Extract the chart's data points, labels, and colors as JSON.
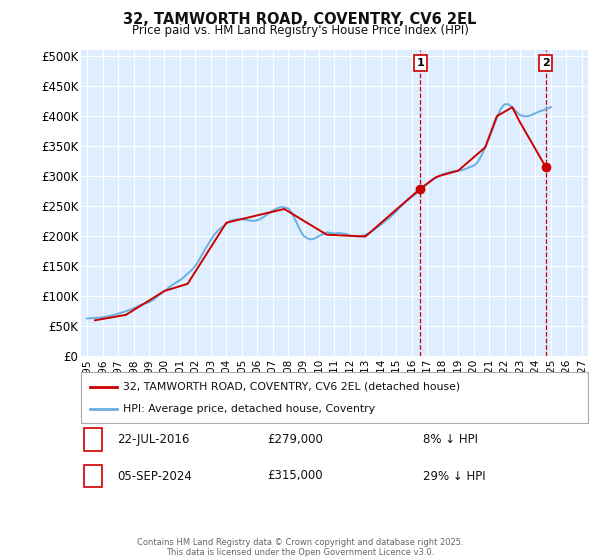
{
  "title": "32, TAMWORTH ROAD, COVENTRY, CV6 2EL",
  "subtitle": "Price paid vs. HM Land Registry's House Price Index (HPI)",
  "ylabel_ticks": [
    "£0",
    "£50K",
    "£100K",
    "£150K",
    "£200K",
    "£250K",
    "£300K",
    "£350K",
    "£400K",
    "£450K",
    "£500K"
  ],
  "ytick_values": [
    0,
    50000,
    100000,
    150000,
    200000,
    250000,
    300000,
    350000,
    400000,
    450000,
    500000
  ],
  "ylim": [
    0,
    510000
  ],
  "xlim_start": 1994.6,
  "xlim_end": 2027.4,
  "xtick_years": [
    1995,
    1996,
    1997,
    1998,
    1999,
    2000,
    2001,
    2002,
    2003,
    2004,
    2005,
    2006,
    2007,
    2008,
    2009,
    2010,
    2011,
    2012,
    2013,
    2014,
    2015,
    2016,
    2017,
    2018,
    2019,
    2020,
    2021,
    2022,
    2023,
    2024,
    2025,
    2026,
    2027
  ],
  "hpi_color": "#6ab0de",
  "price_color": "#cc0000",
  "vline_color": "#cc0000",
  "bg_color": "#deeeff",
  "grid_color": "#ffffff",
  "ann1_year": 2016.55,
  "ann1_val": 279000,
  "ann1_label": "1",
  "ann1_date": "22-JUL-2016",
  "ann1_price": "£279,000",
  "ann1_note": "8% ↓ HPI",
  "ann2_year": 2024.67,
  "ann2_val": 315000,
  "ann2_label": "2",
  "ann2_date": "05-SEP-2024",
  "ann2_price": "£315,000",
  "ann2_note": "29% ↓ HPI",
  "legend_line1": "32, TAMWORTH ROAD, COVENTRY, CV6 2EL (detached house)",
  "legend_line2": "HPI: Average price, detached house, Coventry",
  "footer": "Contains HM Land Registry data © Crown copyright and database right 2025.\nThis data is licensed under the Open Government Licence v3.0.",
  "hpi_data_years": [
    1995.0,
    1995.25,
    1995.5,
    1995.75,
    1996.0,
    1996.25,
    1996.5,
    1996.75,
    1997.0,
    1997.25,
    1997.5,
    1997.75,
    1998.0,
    1998.25,
    1998.5,
    1998.75,
    1999.0,
    1999.25,
    1999.5,
    1999.75,
    2000.0,
    2000.25,
    2000.5,
    2000.75,
    2001.0,
    2001.25,
    2001.5,
    2001.75,
    2002.0,
    2002.25,
    2002.5,
    2002.75,
    2003.0,
    2003.25,
    2003.5,
    2003.75,
    2004.0,
    2004.25,
    2004.5,
    2004.75,
    2005.0,
    2005.25,
    2005.5,
    2005.75,
    2006.0,
    2006.25,
    2006.5,
    2006.75,
    2007.0,
    2007.25,
    2007.5,
    2007.75,
    2008.0,
    2008.25,
    2008.5,
    2008.75,
    2009.0,
    2009.25,
    2009.5,
    2009.75,
    2010.0,
    2010.25,
    2010.5,
    2010.75,
    2011.0,
    2011.25,
    2011.5,
    2011.75,
    2012.0,
    2012.25,
    2012.5,
    2012.75,
    2013.0,
    2013.25,
    2013.5,
    2013.75,
    2014.0,
    2014.25,
    2014.5,
    2014.75,
    2015.0,
    2015.25,
    2015.5,
    2015.75,
    2016.0,
    2016.25,
    2016.5,
    2016.75,
    2017.0,
    2017.25,
    2017.5,
    2017.75,
    2018.0,
    2018.25,
    2018.5,
    2018.75,
    2019.0,
    2019.25,
    2019.5,
    2019.75,
    2020.0,
    2020.25,
    2020.5,
    2020.75,
    2021.0,
    2021.25,
    2021.5,
    2021.75,
    2022.0,
    2022.25,
    2022.5,
    2022.75,
    2023.0,
    2023.25,
    2023.5,
    2023.75,
    2024.0,
    2024.25,
    2024.5,
    2024.75,
    2025.0
  ],
  "hpi_data_values": [
    62000,
    62500,
    63000,
    63500,
    64000,
    65000,
    66500,
    68000,
    70000,
    72000,
    74000,
    76500,
    79000,
    82000,
    85000,
    87000,
    89000,
    93000,
    98000,
    103000,
    108000,
    113000,
    118000,
    122000,
    126000,
    131000,
    137000,
    143000,
    150000,
    160000,
    172000,
    183000,
    193000,
    203000,
    210000,
    215000,
    220000,
    225000,
    227000,
    228000,
    228000,
    227000,
    226000,
    225000,
    226000,
    229000,
    233000,
    238000,
    242000,
    246000,
    248000,
    248000,
    246000,
    238000,
    225000,
    211000,
    200000,
    196000,
    194000,
    196000,
    200000,
    203000,
    206000,
    205000,
    204000,
    205000,
    204000,
    203000,
    200000,
    200000,
    199000,
    200000,
    202000,
    205000,
    209000,
    214000,
    219000,
    224000,
    229000,
    235000,
    241000,
    248000,
    254000,
    260000,
    265000,
    270000,
    276000,
    281000,
    287000,
    292000,
    297000,
    300000,
    303000,
    305000,
    307000,
    308000,
    309000,
    310000,
    312000,
    315000,
    317000,
    323000,
    334000,
    348000,
    363000,
    380000,
    397000,
    412000,
    420000,
    420000,
    415000,
    408000,
    402000,
    400000,
    400000,
    402000,
    405000,
    408000,
    410000,
    413000,
    415000
  ],
  "price_data_years": [
    1995.5,
    1997.5,
    2000.0,
    2001.5,
    2004.0,
    2007.25,
    2007.75,
    2010.5,
    2013.0,
    2016.55,
    2017.5,
    2017.75,
    2019.0,
    2020.75,
    2021.5,
    2022.5,
    2023.0,
    2024.67
  ],
  "price_data_values": [
    59000,
    68000,
    108000,
    120000,
    222000,
    242000,
    245000,
    202000,
    199000,
    279000,
    297000,
    300000,
    309000,
    348000,
    400000,
    415000,
    390000,
    315000
  ]
}
